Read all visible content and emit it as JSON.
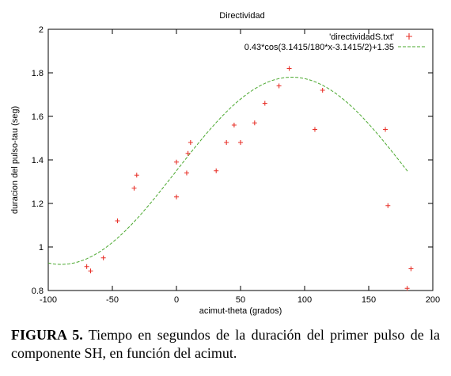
{
  "chart_data": {
    "type": "scatter",
    "title": "Directividad",
    "xlabel": "acimut-theta (grados)",
    "ylabel": "duracion del pulso-tau (seg)",
    "xlim": [
      -100,
      200
    ],
    "ylim": [
      0.8,
      2.0
    ],
    "xticks": [
      "-100",
      "-50",
      "0",
      "50",
      "100",
      "150",
      "200"
    ],
    "yticks": [
      "0.8",
      "1",
      "1.2",
      "1.4",
      "1.6",
      "1.8",
      "2"
    ],
    "legend_position": "top-right",
    "series": [
      {
        "name": "'directividadS.txt'",
        "kind": "points",
        "marker": "+",
        "color": "#e8322a",
        "points": [
          {
            "x": -70,
            "y": 0.91
          },
          {
            "x": -67,
            "y": 0.89
          },
          {
            "x": -57,
            "y": 0.95
          },
          {
            "x": -46,
            "y": 1.12
          },
          {
            "x": -33,
            "y": 1.27
          },
          {
            "x": -31,
            "y": 1.33
          },
          {
            "x": 0,
            "y": 1.39
          },
          {
            "x": 0,
            "y": 1.23
          },
          {
            "x": 8,
            "y": 1.34
          },
          {
            "x": 9,
            "y": 1.43
          },
          {
            "x": 11,
            "y": 1.48
          },
          {
            "x": 31,
            "y": 1.35
          },
          {
            "x": 39,
            "y": 1.48
          },
          {
            "x": 45,
            "y": 1.56
          },
          {
            "x": 50,
            "y": 1.48
          },
          {
            "x": 61,
            "y": 1.57
          },
          {
            "x": 69,
            "y": 1.66
          },
          {
            "x": 80,
            "y": 1.74
          },
          {
            "x": 88,
            "y": 1.82
          },
          {
            "x": 108,
            "y": 1.54
          },
          {
            "x": 114,
            "y": 1.72
          },
          {
            "x": 163,
            "y": 1.54
          },
          {
            "x": 165,
            "y": 1.19
          },
          {
            "x": 180,
            "y": 0.81
          },
          {
            "x": 183,
            "y": 0.9
          }
        ]
      },
      {
        "name": "0.43*cos(3.1415/180*x-3.1415/2)+1.35",
        "kind": "function",
        "amplitude": 0.43,
        "offset": 1.35,
        "x_range": [
          -100,
          181
        ],
        "style": "dashed",
        "color": "#4aa82e"
      }
    ]
  },
  "caption": {
    "label": "FIGURA 5.",
    "text": " Tiempo en segundos de la duración del primer pulso de la componente SH, en función del acimut."
  }
}
